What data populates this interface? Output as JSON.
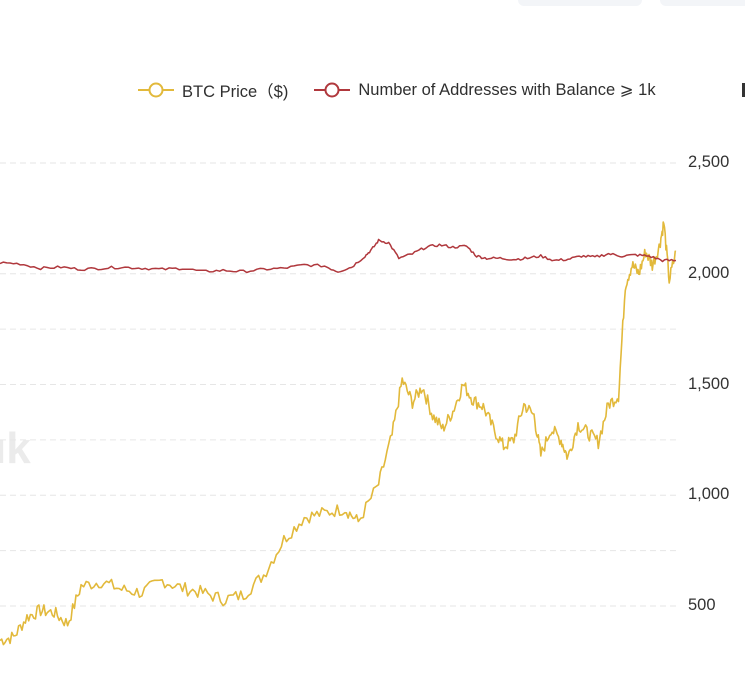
{
  "legend": {
    "price_label": "BTC Price（$)",
    "addresses_label": "Number of Addresses with Balance ⩾ 1k"
  },
  "watermark": "ık",
  "colors": {
    "price": "#E2B93B",
    "addresses": "#B0383D",
    "grid": "#e6e6e6",
    "axis_text": "#333333"
  },
  "chart_data": {
    "type": "line",
    "y_axis": {
      "position": "right",
      "ticks": [
        "2,500",
        "2,000",
        "1,500",
        "1,000",
        "500"
      ],
      "tick_values": [
        2500,
        2000,
        1500,
        1000,
        500
      ],
      "ylim": [
        400,
        2650
      ]
    },
    "grid": true,
    "legend_position": "top",
    "series": [
      {
        "name": "BTC Price（$)",
        "color": "#E2B93B",
        "values": [
          [
            0,
            345
          ],
          [
            0.02,
            360
          ],
          [
            0.04,
            450
          ],
          [
            0.06,
            480
          ],
          [
            0.08,
            470
          ],
          [
            0.1,
            420
          ],
          [
            0.12,
            590
          ],
          [
            0.15,
            610
          ],
          [
            0.18,
            575
          ],
          [
            0.21,
            560
          ],
          [
            0.24,
            615
          ],
          [
            0.27,
            580
          ],
          [
            0.3,
            560
          ],
          [
            0.33,
            530
          ],
          [
            0.36,
            550
          ],
          [
            0.39,
            640
          ],
          [
            0.42,
            800
          ],
          [
            0.45,
            900
          ],
          [
            0.48,
            920
          ],
          [
            0.51,
            940
          ],
          [
            0.53,
            880
          ],
          [
            0.56,
            1050
          ],
          [
            0.58,
            1270
          ],
          [
            0.595,
            1520
          ],
          [
            0.61,
            1420
          ],
          [
            0.625,
            1490
          ],
          [
            0.64,
            1360
          ],
          [
            0.655,
            1300
          ],
          [
            0.67,
            1380
          ],
          [
            0.685,
            1500
          ],
          [
            0.7,
            1430
          ],
          [
            0.715,
            1400
          ],
          [
            0.73,
            1300
          ],
          [
            0.745,
            1220
          ],
          [
            0.76,
            1250
          ],
          [
            0.775,
            1410
          ],
          [
            0.79,
            1360
          ],
          [
            0.8,
            1180
          ],
          [
            0.815,
            1300
          ],
          [
            0.83,
            1250
          ],
          [
            0.84,
            1170
          ],
          [
            0.855,
            1320
          ],
          [
            0.87,
            1280
          ],
          [
            0.885,
            1240
          ],
          [
            0.9,
            1410
          ],
          [
            0.915,
            1450
          ],
          [
            0.925,
            1950
          ],
          [
            0.935,
            2040
          ],
          [
            0.945,
            2000
          ],
          [
            0.955,
            2100
          ],
          [
            0.965,
            2040
          ],
          [
            0.975,
            2120
          ],
          [
            0.982,
            2230
          ],
          [
            0.99,
            1970
          ],
          [
            1,
            2100
          ]
        ]
      },
      {
        "name": "Number of Addresses with Balance ⩾ 1k",
        "color": "#B0383D",
        "values": [
          [
            0,
            2050
          ],
          [
            0.03,
            2045
          ],
          [
            0.06,
            2025
          ],
          [
            0.09,
            2030
          ],
          [
            0.12,
            2020
          ],
          [
            0.15,
            2025
          ],
          [
            0.18,
            2030
          ],
          [
            0.21,
            2025
          ],
          [
            0.24,
            2020
          ],
          [
            0.27,
            2025
          ],
          [
            0.3,
            2010
          ],
          [
            0.33,
            2015
          ],
          [
            0.36,
            2010
          ],
          [
            0.39,
            2020
          ],
          [
            0.42,
            2025
          ],
          [
            0.45,
            2040
          ],
          [
            0.48,
            2035
          ],
          [
            0.5,
            2010
          ],
          [
            0.52,
            2030
          ],
          [
            0.54,
            2080
          ],
          [
            0.55,
            2110
          ],
          [
            0.56,
            2150
          ],
          [
            0.575,
            2140
          ],
          [
            0.59,
            2070
          ],
          [
            0.61,
            2090
          ],
          [
            0.63,
            2120
          ],
          [
            0.65,
            2130
          ],
          [
            0.67,
            2120
          ],
          [
            0.69,
            2125
          ],
          [
            0.705,
            2080
          ],
          [
            0.72,
            2070
          ],
          [
            0.74,
            2070
          ],
          [
            0.76,
            2065
          ],
          [
            0.78,
            2070
          ],
          [
            0.8,
            2080
          ],
          [
            0.82,
            2060
          ],
          [
            0.84,
            2065
          ],
          [
            0.86,
            2080
          ],
          [
            0.88,
            2075
          ],
          [
            0.9,
            2090
          ],
          [
            0.92,
            2080
          ],
          [
            0.94,
            2085
          ],
          [
            0.96,
            2080
          ],
          [
            0.98,
            2060
          ],
          [
            1,
            2060
          ]
        ]
      }
    ]
  }
}
